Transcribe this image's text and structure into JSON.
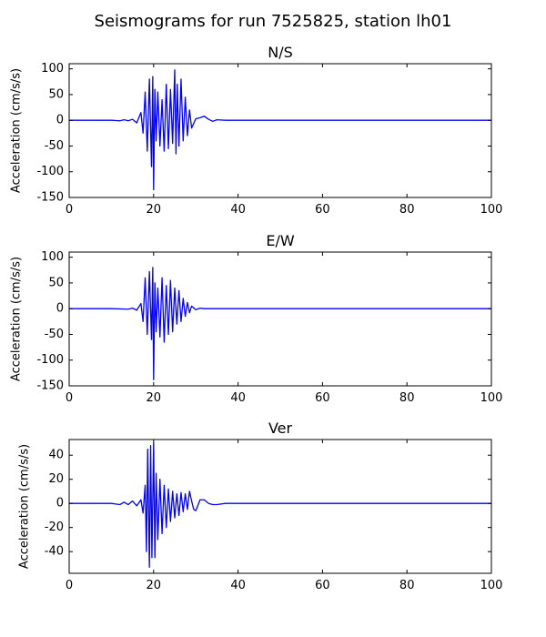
{
  "figure": {
    "title": "Seismograms for run 7525825, station lh01"
  },
  "chart_data": [
    {
      "type": "line",
      "title": "N/S",
      "xlabel": "",
      "ylabel": "Acceleration (cm/s/s)",
      "xlim": [
        0,
        100
      ],
      "ylim": [
        -150,
        110
      ],
      "xticks": [
        0,
        20,
        40,
        60,
        80,
        100
      ],
      "yticks": [
        -150,
        -100,
        -50,
        0,
        50,
        100
      ],
      "line_color": "#0000ff",
      "grid": false,
      "series": [
        {
          "x": [
            0,
            10,
            12,
            13,
            14,
            15,
            16,
            17,
            17.5,
            18,
            18.5,
            19,
            19.5,
            19.8,
            20,
            20.3,
            20.6,
            21,
            21.5,
            22,
            22.5,
            23,
            23.5,
            24,
            24.5,
            25,
            25.3,
            25.6,
            26,
            26.5,
            27,
            27.5,
            28,
            28.5,
            29,
            30,
            31,
            32,
            33,
            34,
            35,
            37,
            40,
            50,
            60,
            70,
            80,
            90,
            100
          ],
          "y": [
            0,
            0,
            -1,
            1,
            -1,
            2,
            -5,
            15,
            -25,
            55,
            -60,
            80,
            -90,
            85,
            -135,
            60,
            -40,
            55,
            -50,
            40,
            -60,
            70,
            -55,
            60,
            -45,
            98,
            -65,
            70,
            -50,
            80,
            -40,
            45,
            -30,
            20,
            -15,
            3,
            5,
            8,
            2,
            -2,
            1,
            0,
            0,
            0,
            0,
            0,
            0,
            0,
            0
          ]
        }
      ]
    },
    {
      "type": "line",
      "title": "E/W",
      "xlabel": "",
      "ylabel": "Acceleration (cm/s/s)",
      "xlim": [
        0,
        100
      ],
      "ylim": [
        -150,
        110
      ],
      "xticks": [
        0,
        20,
        40,
        60,
        80,
        100
      ],
      "yticks": [
        -150,
        -100,
        -50,
        0,
        50,
        100
      ],
      "line_color": "#0000ff",
      "grid": false,
      "series": [
        {
          "x": [
            0,
            10,
            14,
            15,
            16,
            17,
            17.5,
            18,
            18.5,
            19,
            19.5,
            19.8,
            20,
            20.3,
            20.6,
            21,
            21.5,
            22,
            22.5,
            23,
            23.5,
            24,
            24.5,
            25,
            25.5,
            26,
            26.5,
            27,
            27.5,
            28,
            28.5,
            29,
            30,
            31,
            32,
            35,
            40,
            50,
            60,
            70,
            80,
            90,
            100
          ],
          "y": [
            0,
            0,
            -1,
            1,
            -3,
            10,
            -25,
            60,
            -50,
            72,
            -60,
            80,
            -138,
            50,
            -45,
            40,
            -55,
            60,
            -65,
            45,
            -50,
            55,
            -45,
            40,
            -30,
            35,
            -25,
            20,
            -15,
            12,
            -8,
            5,
            -2,
            1,
            0,
            0,
            0,
            0,
            0,
            0,
            0,
            0,
            0
          ]
        }
      ]
    },
    {
      "type": "line",
      "title": "Ver",
      "xlabel": "",
      "ylabel": "Acceleration (cm/s/s)",
      "xlim": [
        0,
        100
      ],
      "ylim": [
        -58,
        53
      ],
      "xticks": [
        0,
        20,
        40,
        60,
        80,
        100
      ],
      "yticks": [
        -40,
        -20,
        0,
        20,
        40
      ],
      "line_color": "#0000ff",
      "grid": false,
      "series": [
        {
          "x": [
            0,
            10,
            12,
            13,
            14,
            15,
            16,
            17,
            17.5,
            18,
            18.3,
            18.6,
            19,
            19.3,
            19.6,
            20,
            20.3,
            20.6,
            21,
            21.5,
            22,
            22.5,
            23,
            23.5,
            24,
            24.5,
            25,
            25.5,
            26,
            26.5,
            27,
            27.5,
            28,
            28.5,
            29,
            29.5,
            30,
            31,
            32,
            33,
            34,
            35,
            37,
            40,
            45,
            50,
            60,
            70,
            80,
            90,
            100
          ],
          "y": [
            0,
            0,
            -1,
            1,
            -1,
            2,
            -2,
            3,
            -8,
            15,
            -40,
            45,
            -53,
            48,
            -45,
            50,
            -45,
            25,
            -30,
            20,
            -25,
            15,
            -20,
            12,
            -15,
            10,
            -12,
            8,
            -10,
            9,
            -7,
            8,
            -5,
            10,
            2,
            -5,
            -6,
            3,
            3,
            0,
            -1,
            -1,
            0,
            0,
            0,
            0,
            0,
            0,
            0,
            0,
            0
          ]
        }
      ]
    }
  ]
}
